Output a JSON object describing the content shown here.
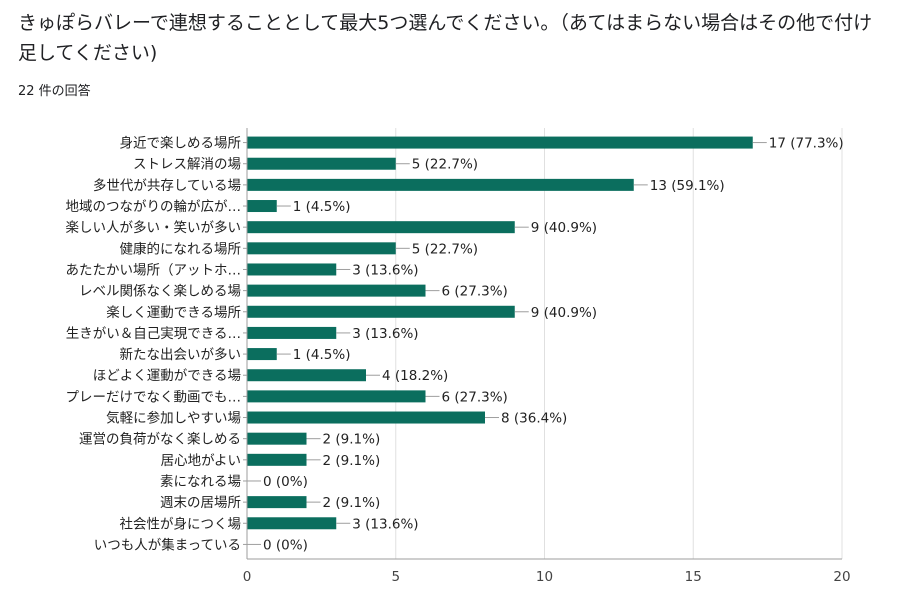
{
  "question": "きゅぽらバレーで連想することとして最大5つ選んでください。（あてはまらない場合はその他で付け足してください)",
  "response_count": "22 件の回答",
  "colors": {
    "bar": "#0b6e5e",
    "axis": "#9e9e9e",
    "grid": "#e0e0e0",
    "connector": "#9e9e9e"
  },
  "chart_data": {
    "type": "bar",
    "orientation": "horizontal",
    "title": "",
    "xlabel": "",
    "ylabel": "",
    "xlim": [
      0,
      20
    ],
    "ticks": [
      0,
      5,
      10,
      15,
      20
    ],
    "tick_labels": [
      "0",
      "5",
      "10",
      "15",
      "20"
    ],
    "grid": true,
    "categories": [
      "身近で楽しめる場所",
      "ストレス解消の場",
      "多世代が共存している場",
      "地域のつながりの輪が広が…",
      "楽しい人が多い・笑いが多い",
      "健康的になれる場所",
      "あたたかい場所（アットホ…",
      "レベル関係なく楽しめる場",
      "楽しく運動できる場所",
      "生きがい＆自己実現できる…",
      "新たな出会いが多い",
      "ほどよく運動ができる場",
      "プレーだけでなく動画でも…",
      "気軽に参加しやすい場",
      "運営の負荷がなく楽しめる",
      "居心地がよい",
      "素になれる場",
      "週末の居場所",
      "社会性が身につく場",
      "いつも人が集まっている"
    ],
    "values": [
      17,
      5,
      13,
      1,
      9,
      5,
      3,
      6,
      9,
      3,
      1,
      4,
      6,
      8,
      2,
      2,
      0,
      2,
      3,
      0
    ],
    "value_labels": [
      "17 (77.3%)",
      "5 (22.7%)",
      "13 (59.1%)",
      "1 (4.5%)",
      "9 (40.9%)",
      "5 (22.7%)",
      "3 (13.6%)",
      "6 (27.3%)",
      "9 (40.9%)",
      "3 (13.6%)",
      "1 (4.5%)",
      "4 (18.2%)",
      "6 (27.3%)",
      "8 (36.4%)",
      "2 (9.1%)",
      "2 (9.1%)",
      "0 (0%)",
      "2 (9.1%)",
      "3 (13.6%)",
      "0 (0%)"
    ]
  }
}
